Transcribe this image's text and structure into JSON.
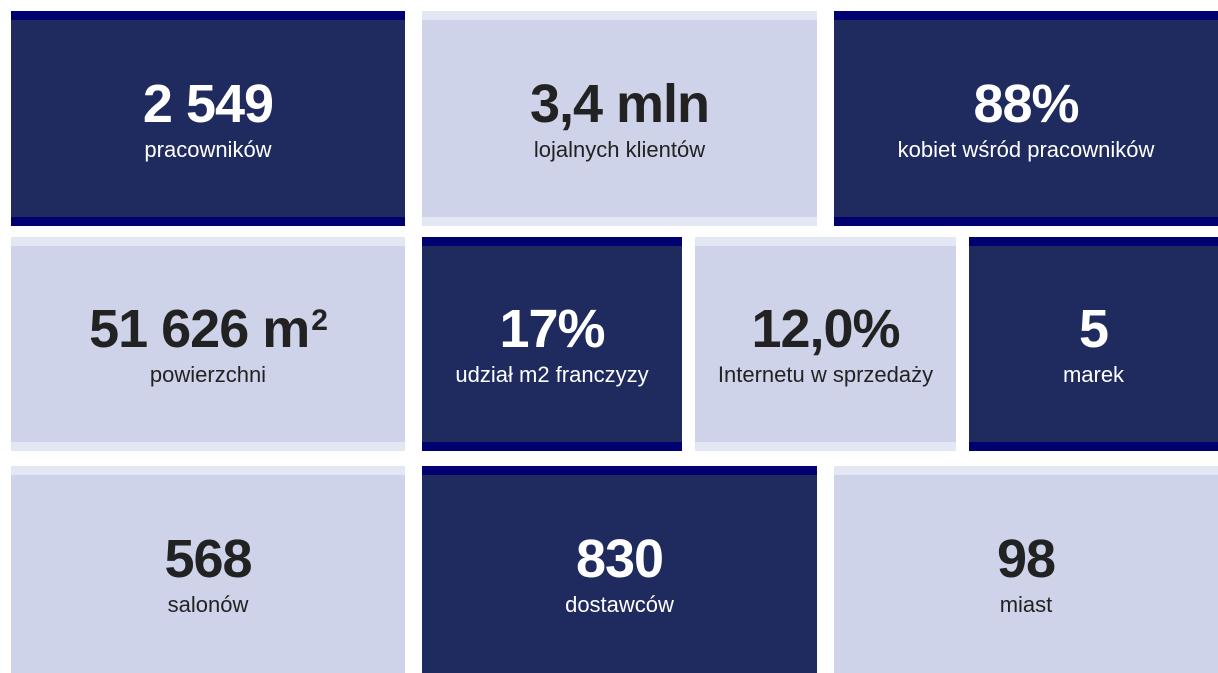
{
  "tiles": [
    {
      "value": "2 549",
      "label": "pracowników"
    },
    {
      "value": "3,4 mln",
      "label": "lojalnych klientów"
    },
    {
      "value": "88%",
      "label": "kobiet wśród pracowników"
    },
    {
      "value": "51 626 m",
      "sup": "2",
      "label": "powierzchni"
    },
    {
      "value": "17%",
      "label": "udział m2 franczyzy"
    },
    {
      "value": "12,0%",
      "label": "Internetu w sprzedaży"
    },
    {
      "value": "5",
      "label": "marek"
    },
    {
      "value": "568",
      "label": "salonów"
    },
    {
      "value": "830",
      "label": "dostawców"
    },
    {
      "value": "98",
      "label": "miast"
    }
  ]
}
